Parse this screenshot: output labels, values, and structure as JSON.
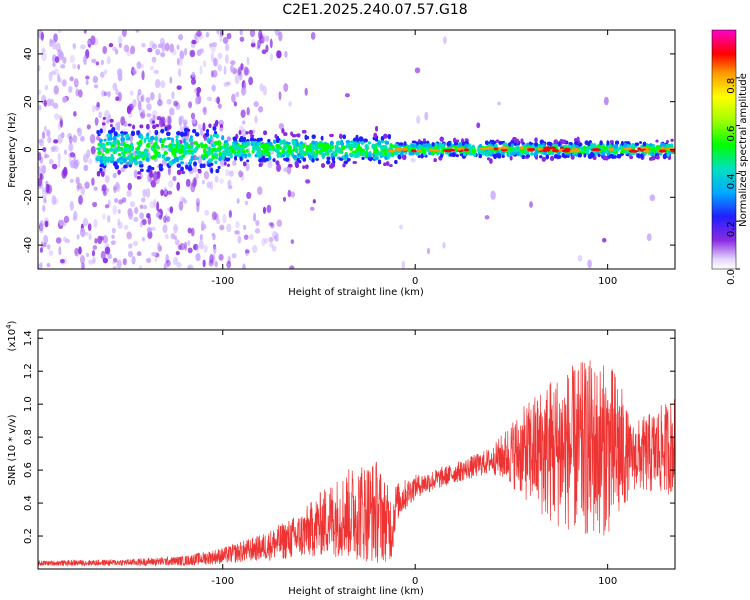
{
  "title": "C2E1.2025.240.07.57.G18",
  "colors": {
    "snr_line": "#ee3333",
    "colormap": [
      "#c8a8ff",
      "#8a2be2",
      "#2020ff",
      "#00aaff",
      "#00e0c0",
      "#00ff00",
      "#a0ff00",
      "#ffff00",
      "#ff9900",
      "#ff0000",
      "#ff00cc"
    ]
  },
  "chart_data": [
    {
      "type": "heatmap",
      "xlabel": "Height of straight line (km)",
      "ylabel": "Frequency (Hz)",
      "xlim": [
        -196,
        135
      ],
      "ylim": [
        -50,
        50
      ],
      "xticks": [
        -100,
        0,
        100
      ],
      "xtick_labels": [
        "-100",
        "0",
        "100"
      ],
      "yticks": [
        -40,
        -20,
        0,
        20,
        40
      ],
      "ytick_labels": [
        "-40",
        "-20",
        "0",
        "20",
        "40"
      ],
      "colorbar": {
        "label": "Normalized spectral amplitude",
        "ticks": [
          0.0,
          0.2,
          0.4,
          0.6,
          0.8
        ],
        "tick_labels": [
          "0.0",
          "0.2",
          "0.4",
          "0.6",
          "0.8"
        ],
        "range": [
          0,
          1
        ]
      }
    },
    {
      "type": "line",
      "xlabel": "Height of straight line (km)",
      "ylabel": "SNR (10 * v/v)",
      "exponent_label": "(x10",
      "exponent_sup": "4",
      "exponent_close": ")",
      "xlim": [
        -196,
        135
      ],
      "ylim": [
        0,
        1.45
      ],
      "xticks": [
        -100,
        0,
        100
      ],
      "xtick_labels": [
        "-100",
        "0",
        "100"
      ],
      "yticks": [
        0.2,
        0.4,
        0.6,
        0.8,
        1.0,
        1.2,
        1.4
      ],
      "ytick_labels": [
        "0.2",
        "0.4",
        "0.6",
        "0.8",
        "1.0",
        "1.2",
        "1.4"
      ],
      "envelope": [
        {
          "x": -196,
          "base": 0.035,
          "amp": 0.015
        },
        {
          "x": -150,
          "base": 0.04,
          "amp": 0.02
        },
        {
          "x": -120,
          "base": 0.05,
          "amp": 0.03
        },
        {
          "x": -100,
          "base": 0.08,
          "amp": 0.05
        },
        {
          "x": -80,
          "base": 0.13,
          "amp": 0.08
        },
        {
          "x": -60,
          "base": 0.2,
          "amp": 0.14
        },
        {
          "x": -45,
          "base": 0.3,
          "amp": 0.22
        },
        {
          "x": -30,
          "base": 0.35,
          "amp": 0.3
        },
        {
          "x": -20,
          "base": 0.35,
          "amp": 0.32
        },
        {
          "x": -12,
          "base": 0.25,
          "amp": 0.2
        },
        {
          "x": -10,
          "base": 0.4,
          "amp": 0.12
        },
        {
          "x": 0,
          "base": 0.5,
          "amp": 0.07
        },
        {
          "x": 20,
          "base": 0.58,
          "amp": 0.06
        },
        {
          "x": 40,
          "base": 0.66,
          "amp": 0.08
        },
        {
          "x": 50,
          "base": 0.7,
          "amp": 0.2
        },
        {
          "x": 70,
          "base": 0.72,
          "amp": 0.45
        },
        {
          "x": 90,
          "base": 0.73,
          "amp": 0.55
        },
        {
          "x": 105,
          "base": 0.72,
          "amp": 0.5
        },
        {
          "x": 112,
          "base": 0.68,
          "amp": 0.2
        },
        {
          "x": 122,
          "base": 0.7,
          "amp": 0.25
        },
        {
          "x": 135,
          "base": 0.75,
          "amp": 0.3
        }
      ]
    }
  ]
}
